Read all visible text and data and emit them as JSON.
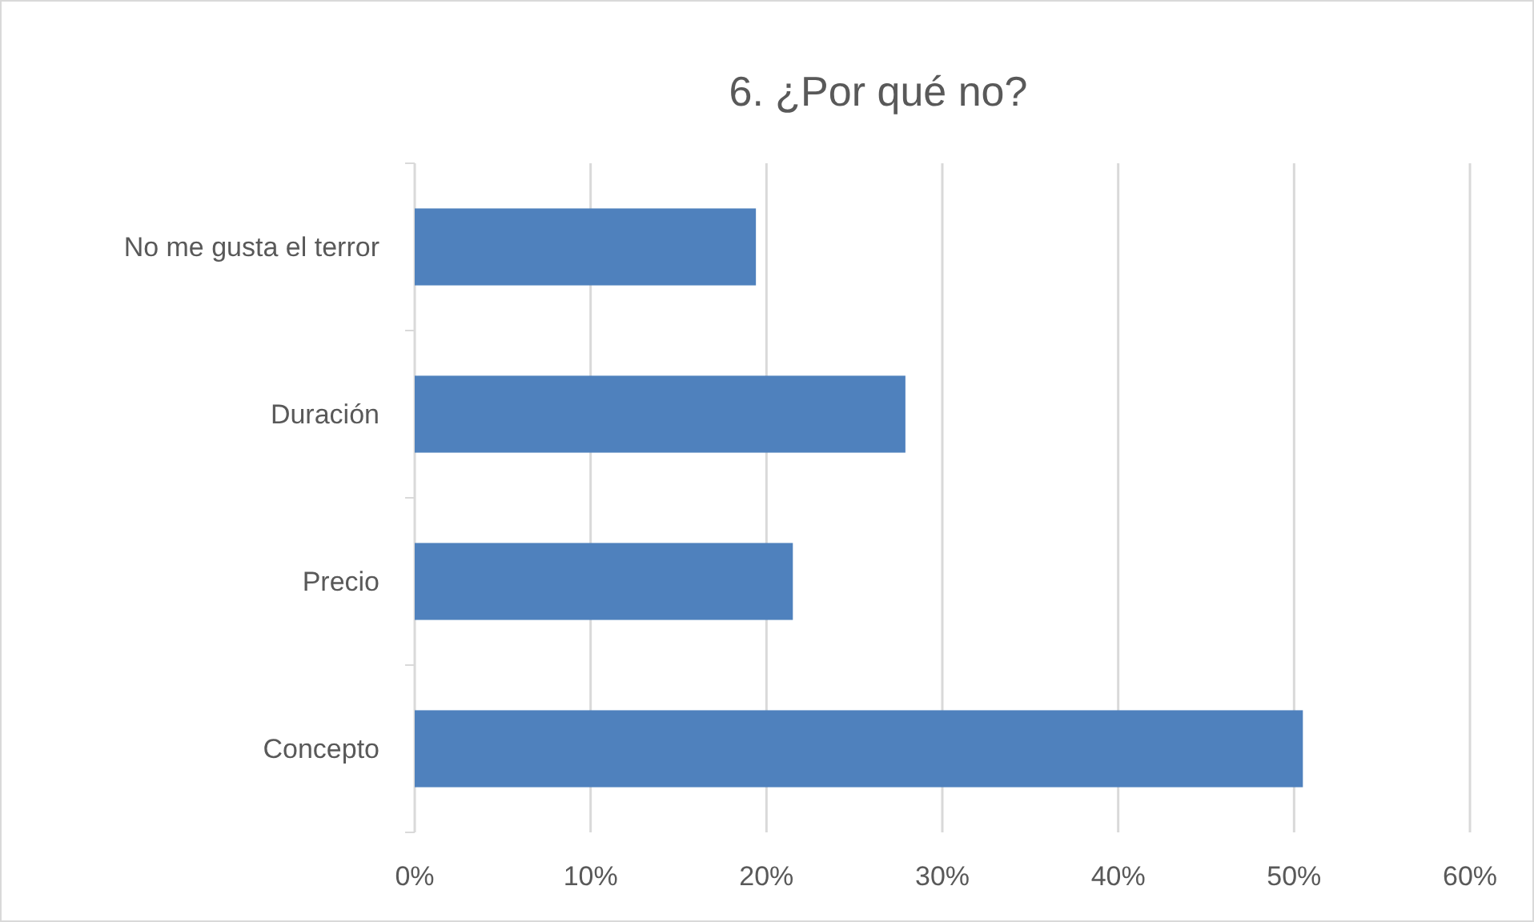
{
  "chart_data": {
    "type": "bar",
    "orientation": "horizontal",
    "title": "6. ¿Por qué no?",
    "categories": [
      "No me gusta el terror",
      "Duración",
      "Precio",
      "Concepto"
    ],
    "values": [
      19.4,
      27.9,
      21.5,
      50.5
    ],
    "color": "#4f81bd",
    "xlim": [
      0,
      60
    ],
    "xticks": [
      {
        "value": 0,
        "label": "0%"
      },
      {
        "value": 10,
        "label": "10%"
      },
      {
        "value": 20,
        "label": "20%"
      },
      {
        "value": 30,
        "label": "30%"
      },
      {
        "value": 40,
        "label": "40%"
      },
      {
        "value": 50,
        "label": "50%"
      },
      {
        "value": 60,
        "label": "60%"
      }
    ],
    "grid": "x"
  }
}
